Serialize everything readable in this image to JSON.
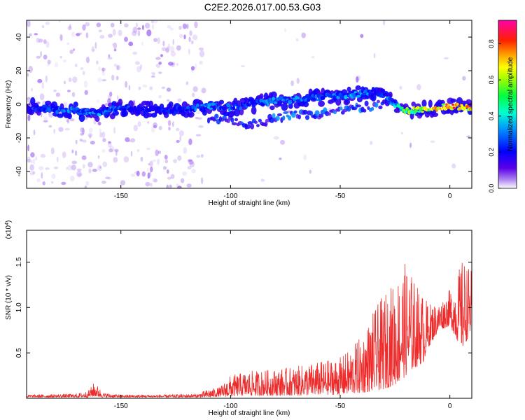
{
  "title": "C2E2.2026.017.00.53.G03",
  "colors": {
    "snr_line": "#ee2b2b",
    "axis": "#000000",
    "spectrogram_low": "#c9a6ef",
    "spectrogram_mid": "#2a00e8",
    "spectrogram_high": "#00ffff"
  },
  "chart_data": [
    {
      "type": "heatmap",
      "title": "C2E2.2026.017.00.53.G03",
      "xlabel": "Height of straight line (km)",
      "ylabel": "Frequency (Hz)",
      "xlim": [
        -193,
        10
      ],
      "ylim": [
        -50,
        50
      ],
      "x_ticks": [
        -150,
        -100,
        -50,
        0
      ],
      "y_ticks": [
        -40,
        -20,
        0,
        20,
        40
      ],
      "colorbar": {
        "label": "Normalized spectral amplitude",
        "range": [
          0,
          0.93
        ],
        "ticks": [
          0.0,
          0.2,
          0.4,
          0.6,
          0.8
        ],
        "colormap": "rainbow (purple-blue-cyan-green-yellow-orange-red-magenta)"
      },
      "ridge": {
        "x": [
          -193,
          -180,
          -170,
          -160,
          -150,
          -140,
          -130,
          -120,
          -110,
          -100,
          -90,
          -80,
          -70,
          -60,
          -50,
          -40,
          -35,
          -30,
          -25,
          -20,
          -10,
          0,
          10
        ],
        "y": [
          -2,
          -3,
          -4,
          -5,
          -2,
          -3,
          -4,
          -3,
          -1,
          -2,
          0,
          2,
          3,
          4,
          5,
          6,
          8,
          5,
          0,
          -4,
          -3,
          -1,
          -2
        ],
        "amplitude": [
          0.3,
          0.35,
          0.4,
          0.4,
          0.35,
          0.3,
          0.3,
          0.35,
          0.4,
          0.35,
          0.35,
          0.4,
          0.4,
          0.35,
          0.4,
          0.4,
          0.35,
          0.35,
          0.45,
          0.6,
          0.7,
          0.85,
          0.8
        ]
      },
      "secondary_ridge": {
        "x": [
          -110,
          -100,
          -90,
          -80,
          -70,
          -60,
          -50,
          -40,
          -30
        ],
        "y": [
          -8,
          -10,
          -12,
          -8,
          -6,
          -6,
          -4,
          -2,
          0
        ]
      }
    },
    {
      "type": "line",
      "xlabel": "Height of straight line (km)",
      "ylabel": "SNR (10 * v/v)",
      "ylabel_multiplier": "(x10",
      "ylabel_multiplier_exp": "4",
      "ylabel_multiplier_close": ")",
      "xlim": [
        -193,
        10
      ],
      "ylim": [
        0,
        1.85
      ],
      "x_ticks": [
        -150,
        -100,
        -50,
        0
      ],
      "y_ticks": [
        0.5,
        1.0,
        1.5
      ],
      "y_tick_labels": [
        "0.5",
        "1.0",
        "1.5"
      ],
      "series": [
        {
          "envelope_x": [
            -193,
            -170,
            -165,
            -162,
            -158,
            -150,
            -130,
            -115,
            -110,
            -105,
            -100,
            -95,
            -90,
            -80,
            -70,
            -60,
            -50,
            -45,
            -40,
            -35,
            -30,
            -25,
            -22,
            -20,
            -18,
            -15,
            -12,
            -10,
            -5,
            0,
            3,
            6,
            10
          ],
          "envelope_y": [
            0.04,
            0.05,
            0.08,
            0.18,
            0.06,
            0.04,
            0.04,
            0.05,
            0.1,
            0.12,
            0.25,
            0.28,
            0.3,
            0.32,
            0.35,
            0.4,
            0.45,
            0.55,
            0.7,
            0.95,
            1.15,
            1.3,
            1.45,
            1.5,
            1.4,
            1.25,
            1.15,
            1.05,
            1.05,
            1.2,
            1.35,
            1.55,
            1.4
          ],
          "floor_y": [
            0.01,
            0.01,
            0.01,
            0.02,
            0.01,
            0.01,
            0.01,
            0.01,
            0.01,
            0.02,
            0.02,
            0.03,
            0.03,
            0.03,
            0.03,
            0.04,
            0.04,
            0.05,
            0.06,
            0.08,
            0.1,
            0.15,
            0.2,
            0.25,
            0.3,
            0.35,
            0.4,
            0.55,
            0.75,
            0.8,
            0.65,
            0.55,
            0.75
          ]
        }
      ]
    }
  ]
}
